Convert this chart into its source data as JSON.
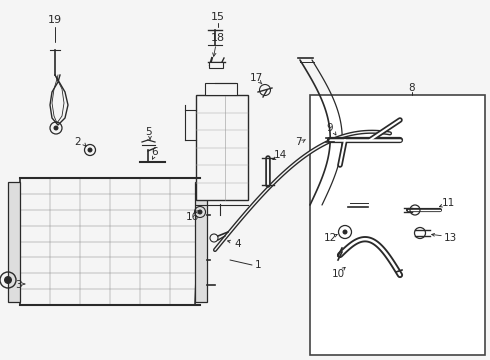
{
  "bg_color": "#f5f5f5",
  "line_color": "#2a2a2a",
  "fig_width": 4.9,
  "fig_height": 3.6,
  "dpi": 100
}
